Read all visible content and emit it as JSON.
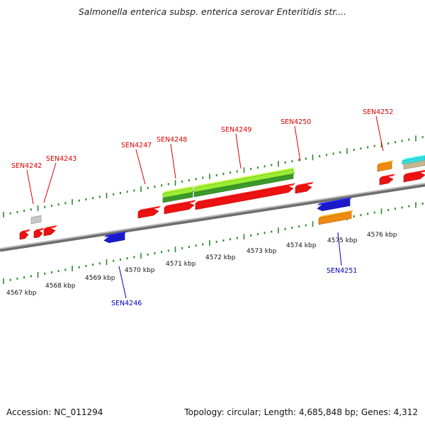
{
  "title": "Salmonella enterica subsp. enterica serovar Enteritidis str....",
  "footer": {
    "accession": "Accession: NC_011294",
    "topology": "Topology: circular; Length: 4,685,848 bp; Genes: 4,312"
  },
  "colors": {
    "backbone": "#888888",
    "forward_gene": "#ee1111",
    "reverse_gene": "#1a1acc",
    "orange_gene": "#f08a10",
    "light_green_gene": "#99ee33",
    "dark_green_gene": "#3a9a2a",
    "gray_gene": "#c8c8c8",
    "cyan_gene": "#33dddd",
    "tan_gene": "#c8b890",
    "tick": "#2a8a2a",
    "label_forward": "#dd0000",
    "label_reverse": "#0000bb"
  },
  "scale_labels": [
    "4567 kbp",
    "4568 kbp",
    "4569 kbp",
    "4570 kbp",
    "4571 kbp",
    "4572 kbp",
    "4573 kbp",
    "4574 kbp",
    "4575 kbp",
    "4576 kbp"
  ],
  "gene_labels": [
    {
      "name": "SEN4242",
      "strand": "forward"
    },
    {
      "name": "SEN4243",
      "strand": "forward"
    },
    {
      "name": "SEN4247",
      "strand": "forward"
    },
    {
      "name": "SEN4248",
      "strand": "forward"
    },
    {
      "name": "SEN4249",
      "strand": "forward"
    },
    {
      "name": "SEN4250",
      "strand": "forward"
    },
    {
      "name": "SEN4252",
      "strand": "forward"
    },
    {
      "name": "SEN4246",
      "strand": "reverse"
    },
    {
      "name": "SEN4251",
      "strand": "reverse"
    }
  ]
}
